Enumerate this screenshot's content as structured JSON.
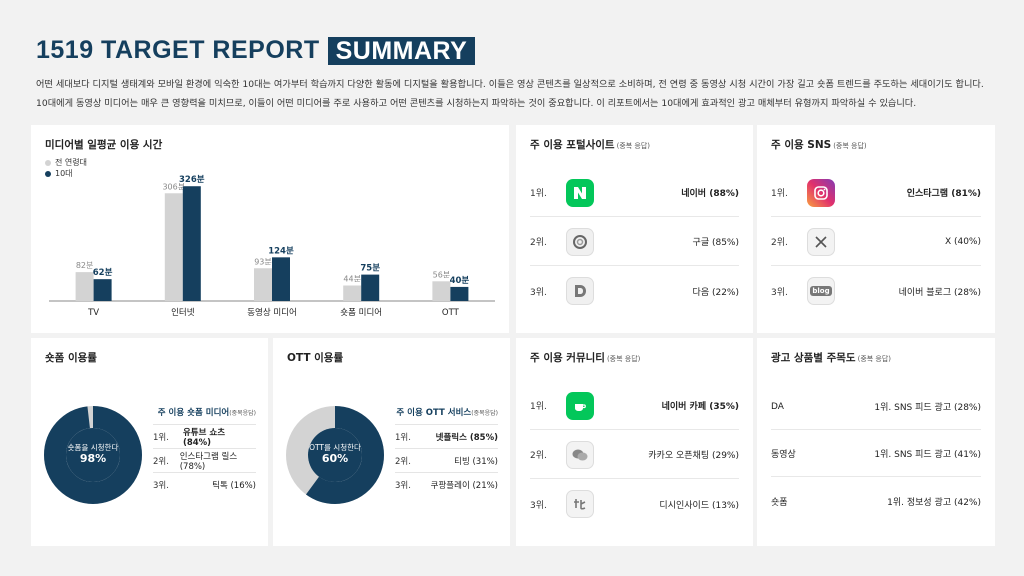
{
  "header": {
    "title": "1519 TARGET REPORT",
    "tag": "SUMMARY",
    "desc_line1": "어떤 세대보다 디지털 생태계와 모바일 환경에 익숙한 10대는 여가부터 학습까지 다양한 활동에 디지털을 활용합니다. 이들은 영상 콘텐츠를 일상적으로 소비하며, 전 연령 중 동영상 시청 시간이 가장 길고 숏폼 트렌드를 주도하는 세대이기도 합니다.",
    "desc_line2": "10대에게 동영상 미디어는 매우 큰 영향력을 미치므로, 이들이 어떤 미디어를 주로 사용하고 어떤 콘텐츠를 시청하는지 파악하는 것이 중요합니다. 이 리포트에서는 10대에게 효과적인 광고 매체부터 유형까지 파악하실 수 있습니다."
  },
  "media_time": {
    "title": "미디어별 일평균 이용 시간",
    "legend_all": "전 연령대",
    "legend_teen": "10대",
    "color_all": "#d3d3d3",
    "color_teen": "#153f5e"
  },
  "chart_data": {
    "type": "bar",
    "categories": [
      "TV",
      "인터넷",
      "동영상 미디어",
      "숏폼 미디어",
      "OTT"
    ],
    "series": [
      {
        "name": "전 연령대",
        "values": [
          82,
          306,
          93,
          44,
          56
        ],
        "labels": [
          "82분",
          "306분",
          "93분",
          "44분",
          "56분"
        ]
      },
      {
        "name": "10대",
        "values": [
          62,
          326,
          124,
          75,
          40
        ],
        "labels": [
          "62분",
          "326분",
          "124분",
          "75분",
          "40분"
        ]
      }
    ],
    "title": "미디어별 일평균 이용 시간",
    "ylim": [
      0,
      340
    ]
  },
  "portal": {
    "title": "주 이용 포털사이트",
    "note": "(중복 응답)",
    "items": [
      {
        "rank": "1위.",
        "name": "네이버 (88%)",
        "icon": "naver-icon"
      },
      {
        "rank": "2위.",
        "name": "구글 (85%)",
        "icon": "google-icon"
      },
      {
        "rank": "3위.",
        "name": "다음 (22%)",
        "icon": "daum-icon"
      }
    ]
  },
  "sns": {
    "title": "주 이용 SNS",
    "note": "(중복 응답)",
    "items": [
      {
        "rank": "1위.",
        "name": "인스타그램 (81%)",
        "icon": "instagram-icon"
      },
      {
        "rank": "2위.",
        "name": "X (40%)",
        "icon": "x-icon"
      },
      {
        "rank": "3위.",
        "name": "네이버 블로그 (28%)",
        "icon": "blog-icon",
        "icon_text": "blog"
      }
    ]
  },
  "shortform": {
    "title": "숏폼 이용률",
    "donut_text": "숏폼을 시청한다",
    "donut_value": "98%",
    "percent": 98,
    "list_title": "주 이용 숏폼 미디어",
    "list_note": "(중복응답)",
    "items": [
      {
        "rank": "1위.",
        "name": "유튜브 쇼츠 (84%)"
      },
      {
        "rank": "2위.",
        "name": "인스타그램 릴스 (78%)"
      },
      {
        "rank": "3위.",
        "name": "틱톡 (16%)"
      }
    ]
  },
  "ott": {
    "title": "OTT 이용률",
    "donut_text": "OTT를 시청한다",
    "donut_value": "60%",
    "percent": 60,
    "list_title": "주 이용 OTT 서비스",
    "list_note": "(중복응답)",
    "items": [
      {
        "rank": "1위.",
        "name": "넷플릭스 (85%)"
      },
      {
        "rank": "2위.",
        "name": "티빙 (31%)"
      },
      {
        "rank": "3위.",
        "name": "쿠팡플레이 (21%)"
      }
    ]
  },
  "community": {
    "title": "주 이용 커뮤니티",
    "note": "(중복 응답)",
    "items": [
      {
        "rank": "1위.",
        "name": "네이버 카페 (35%)",
        "icon": "naver-cafe-icon"
      },
      {
        "rank": "2위.",
        "name": "카카오 오픈채팅 (29%)",
        "icon": "kakao-chat-icon"
      },
      {
        "rank": "3위.",
        "name": "디시인사이드 (13%)",
        "icon": "dcinside-icon"
      }
    ]
  },
  "ad": {
    "title": "광고 상품별 주목도",
    "note": "(중복 응답)",
    "items": [
      {
        "key": "DA",
        "value": "1위. SNS 피드 광고 (28%)"
      },
      {
        "key": "동영상",
        "value": "1위. SNS 피드 광고 (41%)"
      },
      {
        "key": "숏폼",
        "value": "1위. 정보성 광고 (42%)"
      }
    ]
  }
}
